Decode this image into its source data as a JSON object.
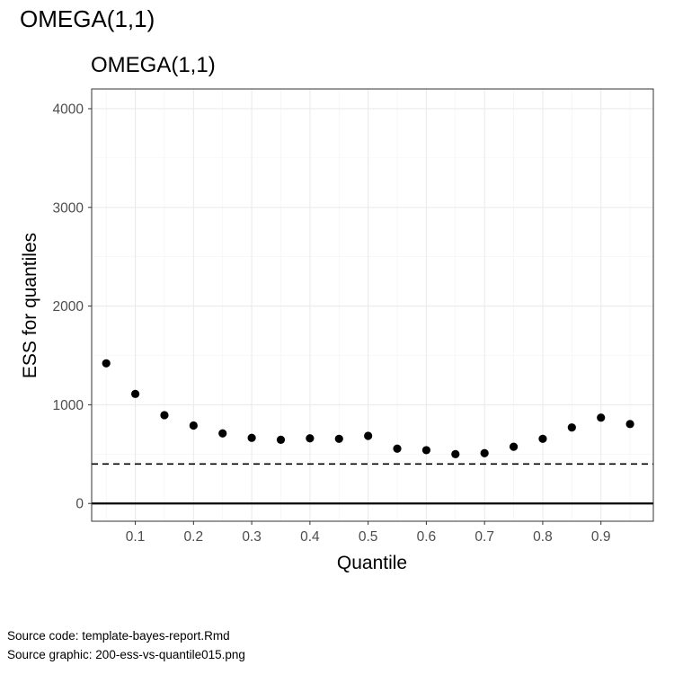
{
  "page": {
    "header_title": "OMEGA(1,1)",
    "caption_lines": [
      "Source code: template-bayes-report.Rmd",
      "Source graphic: 200-ess-vs-quantile015.png"
    ]
  },
  "chart_data": {
    "type": "scatter",
    "title": "OMEGA(1,1)",
    "xlabel": "Quantile",
    "ylabel": "ESS for quantiles",
    "x": [
      0.05,
      0.1,
      0.15,
      0.2,
      0.25,
      0.3,
      0.35,
      0.4,
      0.45,
      0.5,
      0.55,
      0.6,
      0.65,
      0.7,
      0.75,
      0.8,
      0.85,
      0.9,
      0.95
    ],
    "y": [
      1420,
      1110,
      895,
      790,
      710,
      665,
      645,
      660,
      655,
      685,
      555,
      540,
      500,
      510,
      575,
      655,
      770,
      870,
      805
    ],
    "xlim": [
      0.025,
      0.99
    ],
    "ylim": [
      -180,
      4200
    ],
    "x_ticks": [
      0.1,
      0.2,
      0.3,
      0.4,
      0.5,
      0.6,
      0.7,
      0.8,
      0.9
    ],
    "x_tick_labels": [
      "0.1",
      "0.2",
      "0.3",
      "0.4",
      "0.5",
      "0.6",
      "0.7",
      "0.8",
      "0.9"
    ],
    "y_ticks": [
      0,
      1000,
      2000,
      3000,
      4000
    ],
    "y_tick_labels": [
      "0",
      "1000",
      "2000",
      "3000",
      "4000"
    ],
    "reference_lines": [
      {
        "y": 0,
        "style": "solid"
      },
      {
        "y": 400,
        "style": "dashed"
      }
    ],
    "grid": true,
    "point_color": "#000000"
  }
}
